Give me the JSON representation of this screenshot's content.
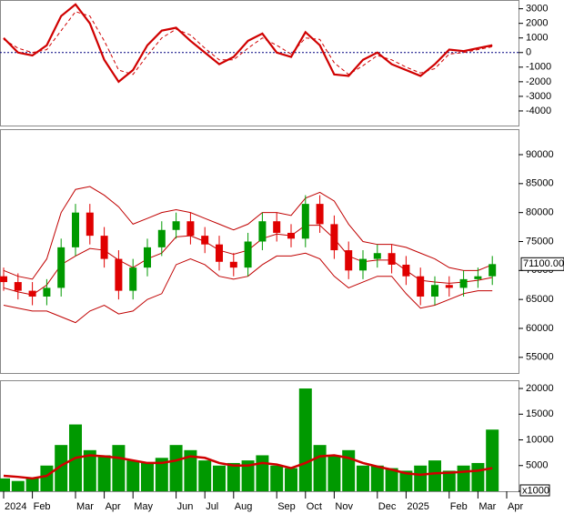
{
  "chart_data": [
    {
      "type": "line",
      "ylim": [
        -5000,
        3600
      ],
      "yticks": [
        3000,
        2000,
        1000,
        0,
        -1000,
        -2000,
        -3000,
        -4000
      ],
      "zero_line": 0,
      "series": [
        {
          "color": "#d00000",
          "style": "solid",
          "values": [
            1000,
            0,
            -200,
            500,
            2500,
            3300,
            2000,
            -500,
            -2000,
            -1200,
            500,
            1500,
            1700,
            800,
            0,
            -800,
            -300,
            800,
            1300,
            0,
            -300,
            1400,
            500,
            -1500,
            -1600,
            -500,
            0,
            -800,
            -1200,
            -1600,
            -800,
            200,
            100,
            300,
            500,
            null
          ]
        },
        {
          "color": "#d00000",
          "style": "dashed",
          "values": [
            900,
            300,
            0,
            200,
            1500,
            2800,
            2500,
            800,
            -1200,
            -1500,
            -200,
            1000,
            1600,
            1200,
            300,
            -500,
            -500,
            300,
            1000,
            500,
            -100,
            1000,
            900,
            -700,
            -1500,
            -900,
            -200,
            -500,
            -1000,
            -1400,
            -1100,
            -100,
            0,
            200,
            400,
            null
          ]
        }
      ]
    },
    {
      "type": "candlestick",
      "ylim": [
        52300,
        94400
      ],
      "yticks": [
        90000,
        85000,
        80000,
        75000,
        70000,
        65000,
        60000,
        55000
      ],
      "up_color": "#009900",
      "down_color": "#e00000",
      "open": [
        69000,
        68000,
        66500,
        65500,
        67000,
        74000,
        80000,
        76000,
        72000,
        66500,
        70500,
        74000,
        77000,
        78500,
        76000,
        74500,
        71500,
        70500,
        75000,
        78500,
        76500,
        75500,
        81500,
        78000,
        73500,
        70000,
        72000,
        73000,
        71000,
        69000,
        65500,
        67500,
        67000,
        68500,
        69000,
        null
      ],
      "high": [
        70500,
        69500,
        68000,
        68500,
        75500,
        81500,
        81500,
        77500,
        73500,
        72000,
        75500,
        78500,
        80000,
        80000,
        77500,
        76000,
        73000,
        76500,
        80000,
        80000,
        78000,
        83000,
        83000,
        79500,
        75000,
        73500,
        74500,
        74500,
        72500,
        70500,
        69000,
        69000,
        70000,
        70500,
        72500,
        null
      ],
      "low": [
        66500,
        65000,
        64000,
        64000,
        65500,
        72500,
        74500,
        70500,
        65000,
        65000,
        69000,
        72500,
        75500,
        74500,
        73000,
        70000,
        69000,
        69000,
        73500,
        75000,
        74000,
        74000,
        76500,
        72000,
        68500,
        68500,
        70500,
        69500,
        67500,
        64000,
        64000,
        65500,
        65500,
        67000,
        67500,
        null
      ],
      "close": [
        68000,
        66500,
        65500,
        67000,
        74000,
        80000,
        76000,
        72000,
        66500,
        70500,
        74000,
        77000,
        78500,
        76000,
        74500,
        71500,
        70500,
        75000,
        78500,
        76500,
        75500,
        81500,
        78000,
        73500,
        70000,
        72000,
        73000,
        71000,
        69000,
        65500,
        67500,
        67000,
        68500,
        69000,
        71100,
        null
      ],
      "last_price_label": {
        "value": 71100,
        "label": "71100.00"
      },
      "bands": [
        {
          "color": "#c00000",
          "values": [
            70000,
            69000,
            68500,
            72000,
            80000,
            84000,
            84500,
            83000,
            81000,
            78000,
            79000,
            80000,
            80500,
            80000,
            79000,
            78000,
            77000,
            78000,
            80000,
            80000,
            79500,
            82500,
            83500,
            82000,
            78000,
            75000,
            74500,
            74500,
            74000,
            73000,
            72000,
            70500,
            70000,
            70000,
            71000,
            null
          ]
        },
        {
          "color": "#c00000",
          "values": [
            67000,
            66300,
            65800,
            67500,
            71000,
            72500,
            73800,
            73500,
            71800,
            70500,
            72000,
            73000,
            75800,
            76000,
            75000,
            73500,
            72800,
            73500,
            75500,
            76300,
            76000,
            77800,
            77800,
            75500,
            72500,
            71500,
            71800,
            71800,
            70000,
            68300,
            68000,
            67800,
            68000,
            68300,
            68800,
            null
          ]
        },
        {
          "color": "#c00000",
          "values": [
            64000,
            63500,
            63000,
            63000,
            62000,
            61000,
            63000,
            64000,
            62500,
            63000,
            65000,
            66000,
            71000,
            72000,
            71000,
            69000,
            68500,
            69000,
            71000,
            72500,
            72500,
            73000,
            72000,
            69000,
            67000,
            68000,
            69000,
            69000,
            66000,
            63500,
            64000,
            65000,
            66000,
            66500,
            66500,
            null
          ]
        }
      ]
    },
    {
      "type": "bar",
      "ylim": [
        0,
        21600
      ],
      "yticks": [
        20000,
        15000,
        10000,
        5000,
        0
      ],
      "y_unit": "x1000",
      "color": "#009900",
      "categories": [
        "2024",
        null,
        "Feb",
        null,
        null,
        "Mar",
        null,
        "Apr",
        null,
        "May",
        null,
        null,
        "Jun",
        null,
        "Jul",
        null,
        "Aug",
        null,
        null,
        "Sep",
        null,
        "Oct",
        null,
        "Nov",
        null,
        null,
        "Dec",
        null,
        "2025",
        null,
        null,
        "Feb",
        null,
        "Mar",
        null,
        "Apr"
      ],
      "values": [
        2500,
        2000,
        2500,
        5000,
        9000,
        13000,
        8000,
        7000,
        9000,
        6000,
        5500,
        6500,
        9000,
        8000,
        6000,
        5000,
        5500,
        6000,
        7000,
        5000,
        4500,
        20000,
        9000,
        7000,
        8000,
        5000,
        5000,
        4500,
        4000,
        5000,
        6000,
        4000,
        5000,
        5500,
        12000,
        null
      ],
      "series": [
        {
          "color": "#d00000",
          "values": [
            3000,
            2800,
            2500,
            3000,
            5000,
            6500,
            7000,
            6800,
            6500,
            6000,
            5500,
            5500,
            6000,
            6800,
            6500,
            5500,
            5000,
            5000,
            5500,
            5200,
            4500,
            5500,
            6800,
            7000,
            6500,
            5500,
            4800,
            4200,
            3500,
            3200,
            3500,
            3600,
            3800,
            4000,
            4500,
            null
          ]
        }
      ]
    }
  ]
}
